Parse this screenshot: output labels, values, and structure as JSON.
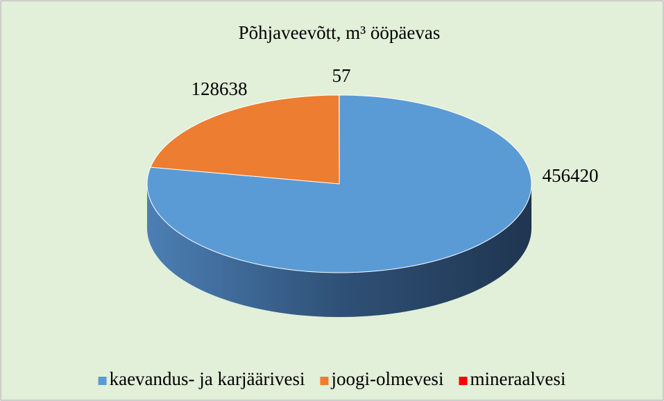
{
  "chart_data": {
    "type": "pie3d",
    "title": "Põhjaveevõtt, m³ ööpäevas",
    "categories": [
      "kaevandus- ja karjäärivesi",
      "joogi-olmevesi",
      "mineraalvesi"
    ],
    "values": [
      456420,
      128638,
      57
    ],
    "colors": [
      "#5b9bd5",
      "#ed7d31",
      "#ff0000"
    ],
    "legend": "bottom"
  }
}
